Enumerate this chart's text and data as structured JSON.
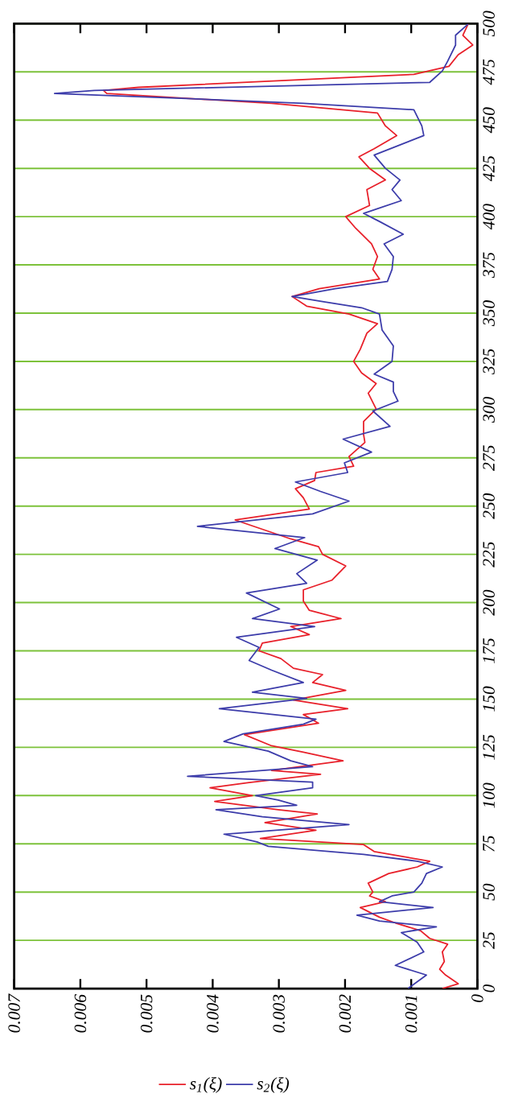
{
  "chart_data": {
    "type": "line",
    "xlim": [
      0.007,
      0
    ],
    "ylim": [
      0,
      500
    ],
    "xticks": [
      0.007,
      0.006,
      0.005,
      0.004,
      0.003,
      0.002,
      0.001,
      0
    ],
    "yticks": [
      0,
      25,
      50,
      75,
      100,
      125,
      150,
      175,
      200,
      225,
      250,
      275,
      300,
      325,
      350,
      375,
      400,
      425,
      450,
      475,
      500
    ],
    "grid": "y",
    "legend": "bottom left",
    "series": [
      {
        "name": "s$_{1}$(ξ)",
        "color": "#e8202a",
        "values": [
          0,
          2.5,
          7,
          10,
          14,
          19,
          23,
          26,
          30,
          34,
          37,
          42,
          45,
          48,
          50,
          54.6,
          59.6,
          63,
          66,
          71,
          74.6,
          77.8,
          82,
          86,
          90.5,
          92.7,
          97,
          100,
          104,
          106.8,
          111,
          113,
          118,
          122.5,
          125.8,
          131.6,
          137.5,
          142,
          145,
          149.5,
          154.5,
          158.6,
          162.7,
          166,
          171,
          175,
          179,
          183.4,
          187.6,
          191.7,
          196,
          200.8,
          206.6,
          211.6,
          219,
          225,
          229,
          233,
          242.8,
          248.5,
          254.3,
          259,
          263.3,
          267.4,
          270.7,
          275.7,
          283,
          287.2,
          293.8,
          300.3,
          308.5,
          313.5,
          319,
          325,
          331.3,
          339.6,
          344.5,
          349.5,
          353.6,
          358.6,
          362.7,
          367.7,
          372.7,
          379.3,
          385.9,
          394,
          400,
          405.8,
          414,
          419,
          425,
          431,
          435.2,
          442,
          447,
          453.7,
          458.7,
          463.8,
          465.4,
          467,
          473.7,
          477.9,
          483.9,
          488.9,
          494,
          499.8
        ],
        "x": [
          0.00053,
          0.00029,
          0.00048,
          0.00057,
          0.0005,
          0.00053,
          0.00045,
          0.00072,
          0.00086,
          0.00124,
          0.00148,
          0.00177,
          0.00139,
          0.00163,
          0.00158,
          0.00165,
          0.00134,
          0.00091,
          0.00072,
          0.00156,
          0.00172,
          0.00328,
          0.00244,
          0.00321,
          0.00242,
          0.00301,
          0.00397,
          0.0034,
          0.00404,
          0.00345,
          0.00237,
          0.00311,
          0.00203,
          0.00263,
          0.00311,
          0.00352,
          0.0024,
          0.00263,
          0.00196,
          0.00278,
          0.00199,
          0.00249,
          0.00234,
          0.00278,
          0.00297,
          0.0033,
          0.00325,
          0.00254,
          0.00282,
          0.00206,
          0.00254,
          0.00263,
          0.00263,
          0.0022,
          0.00199,
          0.00234,
          0.0024,
          0.00282,
          0.00366,
          0.00254,
          0.00263,
          0.00275,
          0.00246,
          0.00244,
          0.00187,
          0.00194,
          0.0017,
          0.00172,
          0.00172,
          0.00153,
          0.00165,
          0.00153,
          0.00175,
          0.00187,
          0.00177,
          0.00167,
          0.00151,
          0.00194,
          0.00258,
          0.0028,
          0.00239,
          0.00148,
          0.00158,
          0.00151,
          0.0016,
          0.00184,
          0.00199,
          0.00163,
          0.00167,
          0.00139,
          0.00163,
          0.00179,
          0.00156,
          0.00122,
          0.00139,
          0.00151,
          0.00311,
          0.0056,
          0.00565,
          0.00512,
          0.00096,
          0.00043,
          0.00029,
          7e-05,
          0.00022,
          0.00014
        ]
      },
      {
        "name": "s$_{2}$(ξ)",
        "color": "#3c3caa",
        "values": [
          0,
          7,
          12,
          19,
          24,
          29,
          32,
          35,
          38,
          42,
          45,
          48,
          50,
          54.6,
          59.6,
          63,
          66,
          69.5,
          73.7,
          76,
          80,
          85,
          89,
          92.7,
          95,
          97.7,
          100,
          104,
          107,
          110,
          115,
          118,
          123,
          128,
          132,
          137,
          139.6,
          145,
          150.3,
          153.6,
          158.6,
          165,
          170,
          176.8,
          182,
          187.6,
          191.7,
          196.7,
          205,
          210,
          215,
          222,
          228,
          233.7,
          239.5,
          246,
          252.6,
          257.6,
          262.5,
          267.4,
          272.4,
          278,
          284.7,
          291.3,
          299.3,
          304.4,
          309.4,
          314.3,
          318.4,
          325,
          333,
          341.2,
          349.5,
          352.8,
          356,
          358.6,
          362.7,
          366.4,
          372.7,
          379.3,
          385.9,
          390.9,
          397.5,
          401.7,
          408.3,
          414,
          419,
          425,
          431.9,
          442,
          447,
          455.4,
          458.7,
          461.2,
          463.8,
          465.4,
          469.6,
          475.5,
          480.5,
          488.9,
          494,
          499.8
        ],
        "x": [
          0.00105,
          0.00077,
          0.00124,
          0.00081,
          0.00091,
          0.00115,
          0.00062,
          0.00148,
          0.00182,
          0.00067,
          0.00148,
          0.00129,
          0.00096,
          0.00084,
          0.00077,
          0.00053,
          0.00091,
          0.00172,
          0.00316,
          0.00333,
          0.00383,
          0.00194,
          0.00325,
          0.00395,
          0.00273,
          0.00301,
          0.00335,
          0.00249,
          0.00249,
          0.00438,
          0.00249,
          0.00282,
          0.00316,
          0.00383,
          0.00354,
          0.00263,
          0.00244,
          0.0039,
          0.00258,
          0.0034,
          0.00263,
          0.00311,
          0.00345,
          0.0033,
          0.00364,
          0.00246,
          0.0034,
          0.00299,
          0.00349,
          0.00258,
          0.00273,
          0.00242,
          0.00306,
          0.00261,
          0.00423,
          0.00249,
          0.00194,
          0.00237,
          0.00275,
          0.00196,
          0.00201,
          0.0016,
          0.00203,
          0.00132,
          0.00158,
          0.0012,
          0.00127,
          0.00127,
          0.00156,
          0.00129,
          0.00127,
          0.00144,
          0.00148,
          0.00175,
          0.00234,
          0.0028,
          0.00215,
          0.00136,
          0.00129,
          0.00127,
          0.00141,
          0.00112,
          0.00148,
          0.00172,
          0.00115,
          0.00129,
          0.00117,
          0.00139,
          0.00156,
          0.00081,
          0.00084,
          0.00096,
          0.00263,
          0.0044,
          0.00639,
          0.00579,
          0.00072,
          0.00053,
          0.00045,
          0.00033,
          0.00033,
          0.00014
        ]
      }
    ]
  }
}
